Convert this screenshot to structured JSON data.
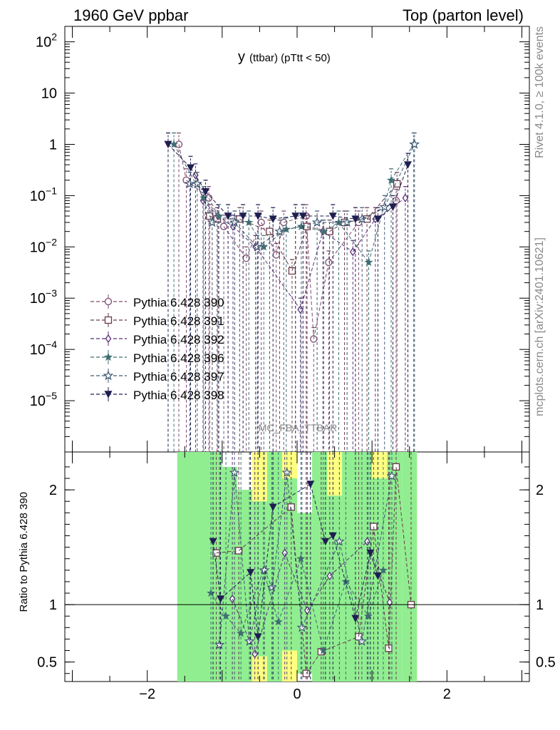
{
  "header": {
    "left": "1960 GeV ppbar",
    "right": "Top (parton level)"
  },
  "side_labels": {
    "rivet": "Rivet 4.1.0, ≥ 100k events",
    "mcplots": "mcplots.cern.ch [arXiv:2401.10621]"
  },
  "watermark": "MC_FBA_TTBAR",
  "colors": {
    "band_green": "#90ee90",
    "band_yellow": "#ffff80",
    "s390": "#7b4a6e",
    "s391": "#6b3a4a",
    "s392": "#5a2f78",
    "s396": "#3f6e72",
    "s397": "#3f5872",
    "s398": "#1e1e50"
  },
  "chart_data": {
    "type": "line",
    "title_main": "y",
    "title_rest": "(ttbar) (pTtt < 50)",
    "main_yscale": "log",
    "xlim": [
      -3.1,
      3.1
    ],
    "main_ylim": [
      1e-06,
      200
    ],
    "main_yticks": [
      {
        "v": 100,
        "t": "10",
        "sup": "2"
      },
      {
        "v": 10,
        "t": "10",
        "sup": ""
      },
      {
        "v": 1,
        "t": "1",
        "sup": ""
      },
      {
        "v": 0.1,
        "t": "10",
        "sup": "−1"
      },
      {
        "v": 0.01,
        "t": "10",
        "sup": "−2"
      },
      {
        "v": 0.001,
        "t": "10",
        "sup": "−3"
      },
      {
        "v": 0.0001,
        "t": "10",
        "sup": "−4"
      },
      {
        "v": 1e-05,
        "t": "10",
        "sup": "−5"
      }
    ],
    "ratio_ylabel": "Ratio to Pythia 6.428 390",
    "ratio_ylim": [
      0.33,
      2.33
    ],
    "ratio_yticks": [
      {
        "v": 2,
        "t": "2"
      },
      {
        "v": 1,
        "t": "1"
      },
      {
        "v": 0.5,
        "t": "0.5"
      }
    ],
    "xticks": [
      {
        "v": -2,
        "t": "−2"
      },
      {
        "v": 0,
        "t": "0"
      },
      {
        "v": 2,
        "t": "2"
      }
    ],
    "series": [
      {
        "name": "Pythia 6.428 390",
        "marker": "circle",
        "x": [
          -1.55,
          -1.45,
          -1.15,
          -0.95,
          -0.65,
          -0.45,
          -0.25,
          -0.15,
          0.15,
          0.25,
          0.45,
          0.85,
          1.35
        ],
        "y": [
          1.0,
          0.2,
          0.09,
          0.025,
          0.006,
          0.03,
          0.007,
          0.03,
          0.04,
          0.00016,
          0.005,
          0.03,
          0.08
        ]
      },
      {
        "name": "Pythia 6.428 391",
        "marker": "square",
        "x": [
          -1.15,
          -1.05,
          -0.75,
          -0.35,
          -0.05,
          0.15,
          0.45,
          0.65,
          0.95,
          1.35
        ],
        "y": [
          0.04,
          0.035,
          0.035,
          0.02,
          0.0034,
          0.025,
          0.02,
          0.03,
          0.035,
          0.17
        ]
      },
      {
        "name": "Pythia 6.428 392",
        "marker": "diamond",
        "x": [
          -1.35,
          -1.25,
          -1.05,
          -0.85,
          -0.55,
          0.05,
          0.35,
          0.75,
          1.05,
          1.45
        ],
        "y": [
          0.25,
          0.08,
          0.04,
          0.025,
          0.01,
          0.0006,
          0.02,
          0.008,
          0.035,
          0.09
        ]
      },
      {
        "name": "Pythia 6.428 396",
        "marker": "star",
        "x": [
          -1.65,
          -1.25,
          -1.05,
          -0.65,
          -0.45,
          -0.15,
          0.05,
          0.35,
          0.55,
          0.95,
          1.25,
          1.55
        ],
        "y": [
          1.0,
          0.09,
          0.04,
          0.03,
          0.01,
          0.022,
          0.025,
          0.02,
          0.03,
          0.005,
          0.2,
          1.0
        ]
      },
      {
        "name": "Pythia 6.428 397",
        "marker": "star-open",
        "x": [
          -1.45,
          -1.35,
          -1.15,
          -0.85,
          -0.55,
          -0.25,
          0.25,
          0.65,
          0.85,
          1.15,
          1.55
        ],
        "y": [
          0.17,
          0.17,
          0.03,
          0.03,
          0.01,
          0.02,
          0.03,
          0.03,
          0.035,
          0.06,
          1.0
        ]
      },
      {
        "name": "Pythia 6.428 398",
        "marker": "triangle-down",
        "x": [
          -1.75,
          -1.45,
          -1.25,
          -0.95,
          -0.75,
          -0.55,
          -0.35,
          -0.05,
          0.05,
          0.45,
          0.75,
          1.05,
          1.25,
          1.45
        ],
        "y": [
          1.0,
          0.35,
          0.12,
          0.04,
          0.04,
          0.04,
          0.035,
          0.04,
          0.04,
          0.04,
          0.035,
          0.035,
          0.06,
          0.4
        ]
      }
    ],
    "ratio_series": [
      {
        "name": "Pythia 6.428 391",
        "marker": "square",
        "x": [
          -1.05,
          -0.75,
          -0.05,
          0.15,
          0.35,
          0.85,
          1.05,
          1.25,
          1.35,
          1.55
        ],
        "y": [
          1.45,
          1.47,
          1.85,
          0.4,
          0.59,
          0.72,
          1.68,
          0.62,
          2.2,
          1.0
        ]
      },
      {
        "name": "Pythia 6.428 392",
        "marker": "diamond",
        "x": [
          -0.85,
          -0.55,
          -0.15,
          0.15,
          0.45,
          0.95,
          1.25
        ],
        "y": [
          1.05,
          0.57,
          1.45,
          0.95,
          1.25,
          1.55,
          1.02
        ]
      },
      {
        "name": "Pythia 6.428 396",
        "marker": "star",
        "x": [
          -1.15,
          -0.95,
          -0.75,
          -0.45,
          -0.25,
          0.05,
          0.35,
          0.65,
          0.95,
          1.15
        ],
        "y": [
          1.1,
          0.9,
          0.75,
          1.3,
          0.85,
          1.4,
          0.6,
          1.2,
          0.9,
          1.3
        ]
      },
      {
        "name": "Pythia 6.428 397",
        "marker": "star-open",
        "x": [
          -1.05,
          -0.85,
          -0.65,
          -0.45,
          -0.35,
          -0.15,
          0.05,
          0.55,
          0.85,
          1.25
        ],
        "y": [
          0.65,
          2.15,
          0.68,
          1.3,
          1.15,
          2.15,
          0.8,
          1.55,
          0.68,
          2.12
        ]
      },
      {
        "name": "Pythia 6.428 398",
        "marker": "triangle-down",
        "x": [
          -1.15,
          -1.05,
          -0.65,
          -0.55,
          -0.35,
          0.15,
          0.35,
          0.45,
          0.75,
          0.95,
          1.05
        ],
        "y": [
          1.55,
          1.05,
          1.28,
          0.72,
          1.85,
          2.05,
          1.55,
          1.6,
          0.88,
          1.45,
          1.25
        ]
      }
    ],
    "ratio_bands": [
      {
        "x0": -1.6,
        "x1": -1.0,
        "lo": 0.33,
        "hi": 2.33,
        "c": "green"
      },
      {
        "x0": -1.0,
        "x1": -0.8,
        "lo": 0.33,
        "hi": 2.2,
        "c": "green"
      },
      {
        "x0": -0.8,
        "x1": -0.6,
        "lo": 0.33,
        "hi": 2.0,
        "c": "green"
      },
      {
        "x0": -0.6,
        "x1": -0.4,
        "lo": 0.33,
        "hi": 2.33,
        "c": "yellow"
      },
      {
        "x0": -0.6,
        "x1": -0.4,
        "lo": 0.55,
        "hi": 1.9,
        "c": "green"
      },
      {
        "x0": -0.4,
        "x1": -0.2,
        "lo": 0.33,
        "hi": 2.33,
        "c": "green"
      },
      {
        "x0": -0.2,
        "x1": 0.0,
        "lo": 0.33,
        "hi": 2.33,
        "c": "yellow"
      },
      {
        "x0": -0.2,
        "x1": 0.0,
        "lo": 0.6,
        "hi": 2.1,
        "c": "green"
      },
      {
        "x0": 0.0,
        "x1": 0.2,
        "lo": 0.4,
        "hi": 1.8,
        "c": "green"
      },
      {
        "x0": 0.2,
        "x1": 0.4,
        "lo": 0.33,
        "hi": 2.33,
        "c": "green"
      },
      {
        "x0": 0.4,
        "x1": 0.6,
        "lo": 0.33,
        "hi": 2.33,
        "c": "yellow"
      },
      {
        "x0": 0.4,
        "x1": 0.6,
        "lo": 0.33,
        "hi": 1.95,
        "c": "green"
      },
      {
        "x0": 0.6,
        "x1": 0.8,
        "lo": 0.33,
        "hi": 2.33,
        "c": "green"
      },
      {
        "x0": 0.8,
        "x1": 1.0,
        "lo": 0.33,
        "hi": 2.33,
        "c": "green"
      },
      {
        "x0": 1.0,
        "x1": 1.2,
        "lo": 0.33,
        "hi": 2.33,
        "c": "yellow"
      },
      {
        "x0": 1.0,
        "x1": 1.2,
        "lo": 0.33,
        "hi": 2.1,
        "c": "green"
      },
      {
        "x0": 1.2,
        "x1": 1.4,
        "lo": 0.33,
        "hi": 2.33,
        "c": "green"
      },
      {
        "x0": 1.4,
        "x1": 1.6,
        "lo": 0.33,
        "hi": 2.33,
        "c": "green"
      }
    ]
  }
}
